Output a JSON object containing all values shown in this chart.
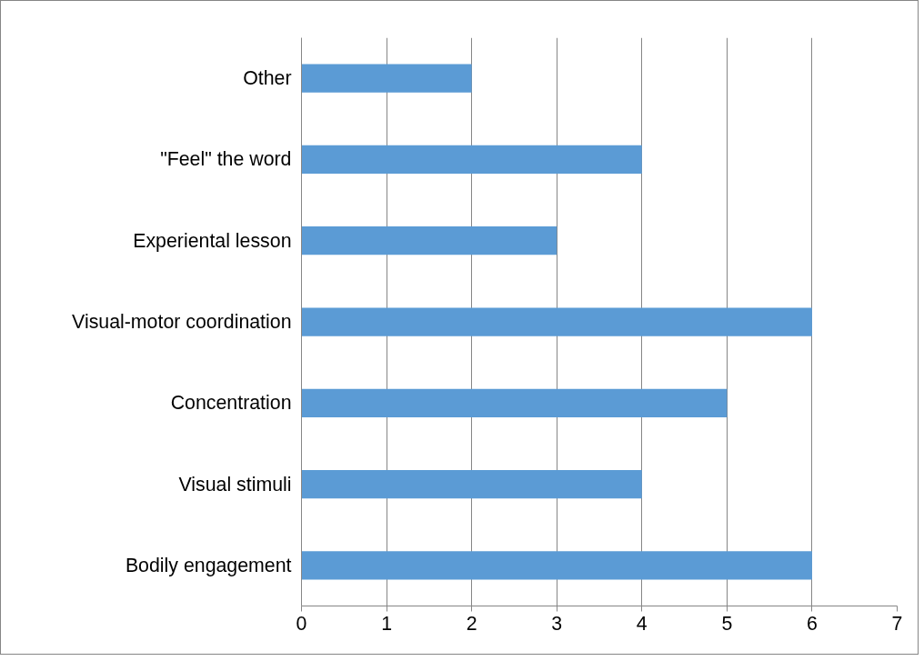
{
  "chart_data": {
    "type": "bar",
    "orientation": "horizontal",
    "categories": [
      "Other",
      "\"Feel\" the word",
      "Experiental lesson",
      "Visual-motor coordination",
      "Concentration",
      "Visual stimuli",
      "Bodily engagement"
    ],
    "values": [
      2,
      4,
      3,
      6,
      5,
      4,
      6
    ],
    "color": "#5b9bd5",
    "xlim": [
      0,
      7
    ],
    "xticks": [
      0,
      1,
      2,
      3,
      4,
      5,
      6,
      7
    ],
    "grid": "x"
  }
}
